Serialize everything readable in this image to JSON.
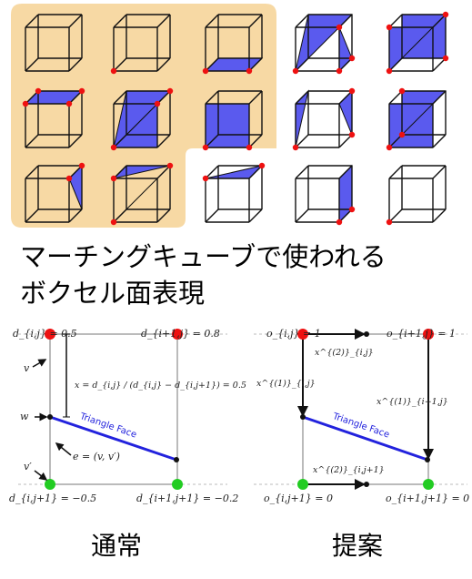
{
  "caption": {
    "line1": "マーチングキューブで使われる",
    "line2": "ボクセル面表現"
  },
  "left_diagram": {
    "top_left": "d_{i,j} = 0.5",
    "top_right": "d_{i+1,j} = 0.8",
    "bottom_left": "d_{i,j+1} = −0.5",
    "bottom_right": "d_{i+1,j+1} = −0.2",
    "v": "v",
    "w": "w",
    "v_prime": "v′",
    "x_formula": "x = d_{i,j} / (d_{i,j} − d_{i,j+1}) = 0.5",
    "e_formula": "e = (v, v′)",
    "triangle_face": "Triangle Face",
    "label": "通常"
  },
  "right_diagram": {
    "top_left": "o_{i,j} = 1",
    "top_right": "o_{i+1,j} = 1",
    "bottom_left": "o_{i,j+1} = 0",
    "bottom_right": "o_{i+1,j+1} = 0",
    "x_top": "x^{(2)}_{i,j}",
    "x_left": "x^{(1)}_{i,j}",
    "x_right": "x^{(1)}_{i+1,j}",
    "x_bottom": "x^{(2)}_{i,j+1}",
    "triangle_face": "Triangle Face",
    "label": "提案"
  },
  "colors": {
    "highlight_bg": "#f7d9a4",
    "face_fill": "#5a5aee",
    "vertex_red": "#ee1111",
    "vertex_green": "#22cc22",
    "triangle_line": "#2222dd"
  }
}
